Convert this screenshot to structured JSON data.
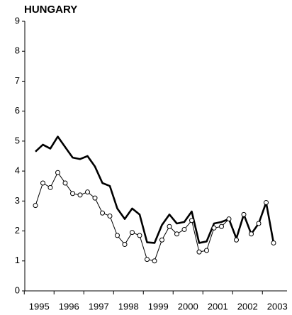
{
  "chart_data": {
    "type": "line",
    "title": "HUNGARY",
    "categories": [
      "1995",
      null,
      null,
      null,
      "1996",
      null,
      null,
      null,
      "1997",
      null,
      null,
      null,
      "1998",
      null,
      null,
      null,
      "1999",
      null,
      null,
      null,
      "2000",
      null,
      null,
      null,
      "2001",
      null,
      null,
      null,
      "2002",
      null,
      null,
      null,
      "2003"
    ],
    "series": [
      {
        "color": "#000000",
        "values": [
          4.65,
          4.88,
          4.75,
          5.15,
          4.8,
          4.45,
          4.4,
          4.5,
          4.15,
          3.6,
          3.5,
          2.75,
          2.4,
          2.75,
          2.55,
          1.62,
          1.6,
          2.2,
          2.55,
          2.25,
          2.3,
          2.65,
          1.6,
          1.65,
          2.25,
          2.3,
          2.4,
          1.75,
          2.55,
          1.9,
          2.25,
          2.95,
          1.6
        ]
      },
      {
        "color": "#000000",
        "values": [
          2.85,
          3.6,
          3.45,
          3.95,
          3.6,
          3.25,
          3.2,
          3.3,
          3.1,
          2.6,
          2.5,
          1.85,
          1.55,
          1.95,
          1.85,
          1.05,
          1.0,
          1.7,
          2.15,
          1.9,
          2.05,
          2.35,
          1.3,
          1.35,
          2.1,
          2.15,
          2.4,
          1.7,
          2.55,
          1.9,
          2.25,
          2.95,
          1.6
        ]
      }
    ],
    "ylim": [
      0,
      9
    ],
    "yticks": [
      0,
      1,
      2,
      3,
      4,
      5,
      6,
      7,
      8,
      9
    ]
  }
}
